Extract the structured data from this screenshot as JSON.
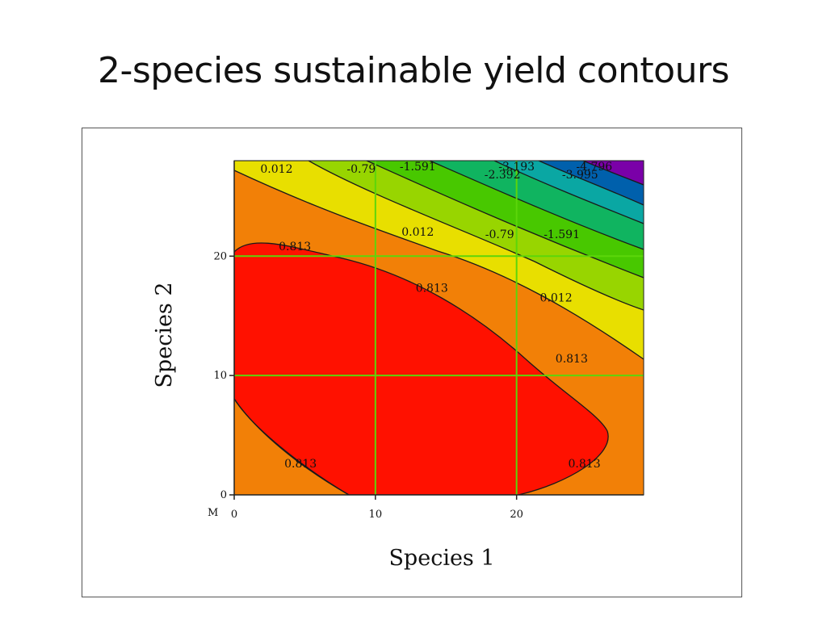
{
  "slide": {
    "title": "2-species sustainable yield contours"
  },
  "chart_data": {
    "type": "contour",
    "xlabel": "Species 1",
    "ylabel": "Species 2",
    "xlim": [
      0,
      29
    ],
    "ylim": [
      0,
      28
    ],
    "x_ticks": [
      0,
      10,
      20
    ],
    "y_ticks": [
      0,
      10,
      20
    ],
    "grid": true,
    "corner_label": "M",
    "levels": [
      0.813,
      0.012,
      -0.79,
      -1.591,
      -2.392,
      -3.193,
      -3.995,
      -4.796
    ],
    "band_colors": [
      "#ff1100",
      "#f28007",
      "#e8df00",
      "#98d500",
      "#48c800",
      "#10b460",
      "#0aa7a3",
      "#0060ac",
      "#7a00a8"
    ],
    "grid_color": "#5cd60a",
    "labels": [
      {
        "text": "0.012",
        "x": 3.0,
        "y": 27.0
      },
      {
        "text": "-0.79",
        "x": 9.0,
        "y": 27.0
      },
      {
        "text": "-1.591",
        "x": 13.0,
        "y": 27.2
      },
      {
        "text": "-3.193",
        "x": 20.0,
        "y": 27.2
      },
      {
        "text": "-2.392",
        "x": 19.0,
        "y": 26.5
      },
      {
        "text": "-4.796",
        "x": 25.5,
        "y": 27.2
      },
      {
        "text": "-3.995",
        "x": 24.5,
        "y": 26.5
      },
      {
        "text": "0.813",
        "x": 4.3,
        "y": 20.5
      },
      {
        "text": "0.012",
        "x": 13.0,
        "y": 21.7
      },
      {
        "text": "-0.79",
        "x": 18.8,
        "y": 21.5
      },
      {
        "text": "-1.591",
        "x": 23.2,
        "y": 21.5
      },
      {
        "text": "0.813",
        "x": 14.0,
        "y": 17.0
      },
      {
        "text": "0.012",
        "x": 22.8,
        "y": 16.2
      },
      {
        "text": "0.813",
        "x": 23.9,
        "y": 11.1
      },
      {
        "text": "0.813",
        "x": 4.7,
        "y": 2.3
      },
      {
        "text": "0.813",
        "x": 24.8,
        "y": 2.3
      }
    ]
  }
}
